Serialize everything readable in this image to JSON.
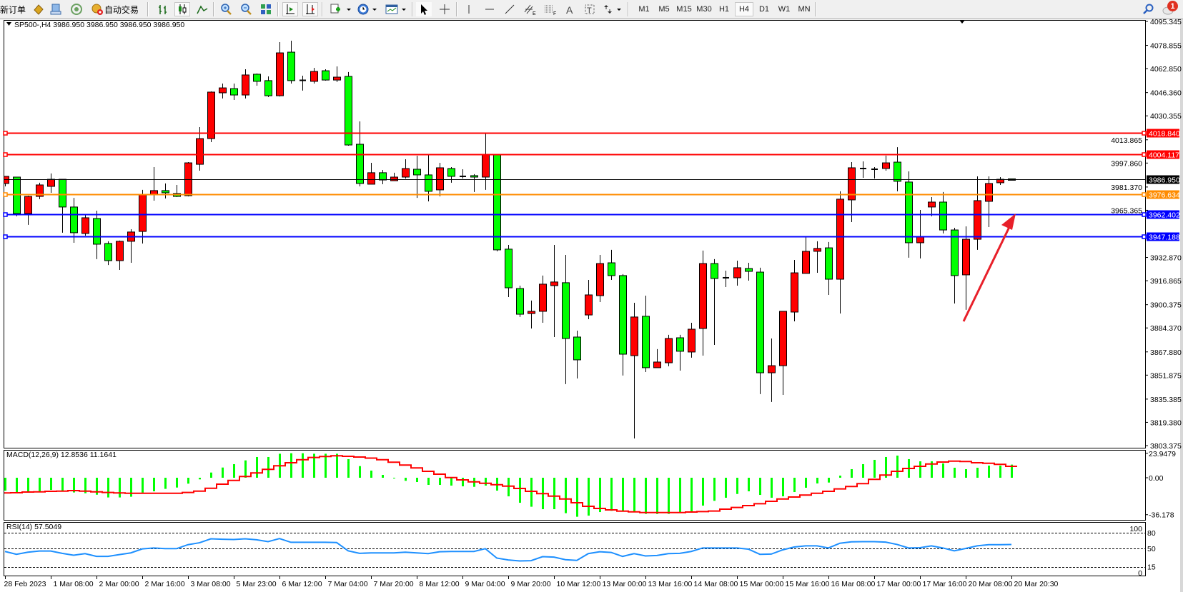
{
  "toolbar": {
    "new_order": "新订单",
    "auto_trading": "自动交易",
    "periods": [
      "M1",
      "M5",
      "M15",
      "M30",
      "H1",
      "H4",
      "D1",
      "W1",
      "MN"
    ],
    "active_period": "H4",
    "notification_count": "1",
    "icons": [
      "market-watch-icon",
      "navigator-icon",
      "signals-icon",
      "auto-trading-icon",
      "bar-chart-icon",
      "candlestick-chart-icon",
      "line-chart-icon",
      "zoom-in-icon",
      "zoom-out-icon",
      "tile-windows-icon",
      "chart-shift-icon",
      "auto-scroll-icon",
      "indicators-icon",
      "periods-icon",
      "templates-icon",
      "cursor-icon",
      "crosshair-icon",
      "vertical-line-icon",
      "horizontal-line-icon",
      "trendline-icon",
      "equidistant-channel-icon",
      "fibonacci-icon",
      "text-icon",
      "text-label-icon",
      "arrows-icon",
      "search-icon",
      "chat-icon"
    ]
  },
  "chart": {
    "header": "SP500-,H4  3986.950 3986.950 3986.950 3986.950"
  },
  "chart_data": {
    "type": "candlestick",
    "symbol": "SP500-",
    "timeframe": "H4",
    "grid": false,
    "bull_color": "#ff0000",
    "bear_color": "#00ff00",
    "price_range": [
      3803.375,
      4095.345
    ],
    "price_ticks": [
      "4095.345",
      "4078.855",
      "4062.850",
      "4046.360",
      "4030.355",
      "4013.865",
      "3997.860",
      "3981.370",
      "3965.365",
      "3932.870",
      "3916.865",
      "3900.375",
      "3884.370",
      "3867.880",
      "3851.875",
      "3835.385",
      "3819.380",
      "3803.375"
    ],
    "levels": [
      {
        "price": 4018.84,
        "label": "4018.840",
        "color": "#ff0000"
      },
      {
        "price": 4004.117,
        "label": "4004.117",
        "color": "#ff0000"
      },
      {
        "price": 3976.634,
        "label": "3976.634",
        "color": "#ff8c00"
      },
      {
        "price": 3962.402,
        "label": "3962.402",
        "color": "#0000ff"
      },
      {
        "price": 3947.188,
        "label": "3947.188",
        "color": "#0000ff"
      }
    ],
    "bid": {
      "price": 3986.95,
      "label": "3986.950",
      "color": "#000000"
    },
    "candles_ohlc": [
      [
        3983.8,
        3988.7,
        3981.8,
        3988.7
      ],
      [
        3988.2,
        3988.2,
        3961.2,
        3963.1
      ],
      [
        3963.1,
        3975.4,
        3955.3,
        3974.9
      ],
      [
        3974.9,
        3984.3,
        3973.0,
        3982.8
      ],
      [
        3981.8,
        3990.7,
        3977.4,
        3986.7
      ],
      [
        3986.7,
        3986.7,
        3949.9,
        3967.6
      ],
      [
        3967.6,
        3973.9,
        3943.0,
        3949.9
      ],
      [
        3949.4,
        3962.2,
        3947.9,
        3960.2
      ],
      [
        3959.7,
        3965.1,
        3931.7,
        3942.0
      ],
      [
        3942.5,
        3944.0,
        3927.7,
        3930.7
      ],
      [
        3930.7,
        3944.5,
        3924.3,
        3944.0
      ],
      [
        3944.0,
        3952.3,
        3929.2,
        3950.4
      ],
      [
        3950.8,
        3979.4,
        3942.5,
        3975.9
      ],
      [
        3976.4,
        3995.1,
        3972.0,
        3978.9
      ],
      [
        3978.9,
        3983.8,
        3973.5,
        3977.4
      ],
      [
        3976.9,
        3982.8,
        3974.4,
        3974.9
      ],
      [
        3975.4,
        3998.5,
        3974.9,
        3998.0
      ],
      [
        3997.0,
        4022.6,
        3992.6,
        4014.7
      ],
      [
        4014.7,
        4047.2,
        4012.3,
        4046.7
      ],
      [
        4046.2,
        4052.6,
        4042.3,
        4049.6
      ],
      [
        4049.1,
        4052.6,
        4041.3,
        4044.7
      ],
      [
        4044.7,
        4062.4,
        4042.3,
        4058.5
      ],
      [
        4059.0,
        4059.5,
        4051.1,
        4054.1
      ],
      [
        4054.6,
        4057.5,
        4043.3,
        4044.2
      ],
      [
        4044.2,
        4081.1,
        4043.7,
        4073.7
      ],
      [
        4074.2,
        4082.1,
        4052.6,
        4054.6
      ],
      [
        4054.8,
        4058.0,
        4047.7,
        4054.8
      ],
      [
        4054.1,
        4063.4,
        4052.6,
        4060.9
      ],
      [
        4061.4,
        4062.4,
        4054.6,
        4055.0
      ],
      [
        4055.0,
        4064.4,
        4053.6,
        4057.0
      ],
      [
        4057.5,
        4060.5,
        4009.8,
        4010.3
      ],
      [
        4010.8,
        4026.5,
        3981.8,
        3983.8
      ],
      [
        3983.3,
        3998.0,
        3983.3,
        3991.2
      ],
      [
        3991.2,
        3993.1,
        3983.3,
        3986.2
      ],
      [
        3985.7,
        3991.2,
        3985.7,
        3988.2
      ],
      [
        3988.2,
        4000.5,
        3987.2,
        3994.1
      ],
      [
        3993.6,
        4002.9,
        3973.9,
        3989.7
      ],
      [
        3989.7,
        4003.4,
        3971.5,
        3978.4
      ],
      [
        3979.4,
        3998.0,
        3974.9,
        3994.6
      ],
      [
        3994.1,
        3995.1,
        3984.3,
        3988.7
      ],
      [
        3988.7,
        3993.6,
        3987.2,
        3988.7
      ],
      [
        3989.2,
        3990.2,
        3977.9,
        3988.2
      ],
      [
        3988.2,
        4018.7,
        3979.4,
        4003.9
      ],
      [
        4003.9,
        4003.9,
        3937.1,
        3938.1
      ],
      [
        3938.6,
        3941.5,
        3905.6,
        3912.0
      ],
      [
        3911.5,
        3913.5,
        3891.9,
        3893.8
      ],
      [
        3894.3,
        3903.2,
        3884.0,
        3895.8
      ],
      [
        3895.8,
        3920.4,
        3887.9,
        3914.5
      ],
      [
        3913.5,
        3941.5,
        3878.1,
        3916.0
      ],
      [
        3915.5,
        3934.6,
        3845.7,
        3877.1
      ],
      [
        3878.1,
        3882.5,
        3849.6,
        3862.4
      ],
      [
        3893.3,
        3917.4,
        3890.4,
        3907.1
      ],
      [
        3906.6,
        3934.6,
        3902.2,
        3928.7
      ],
      [
        3929.2,
        3938.1,
        3917.4,
        3920.4
      ],
      [
        3920.4,
        3921.4,
        3851.6,
        3866.3
      ],
      [
        3865.3,
        3901.7,
        3808.3,
        3891.9
      ],
      [
        3892.4,
        3906.6,
        3854.0,
        3857.0
      ],
      [
        3857.0,
        3869.8,
        3857.0,
        3860.9
      ],
      [
        3860.4,
        3879.6,
        3858.0,
        3877.1
      ],
      [
        3877.6,
        3879.6,
        3855.0,
        3868.3
      ],
      [
        3867.8,
        3887.9,
        3863.9,
        3883.5
      ],
      [
        3884.0,
        3937.6,
        3865.3,
        3928.7
      ],
      [
        3928.7,
        3931.7,
        3872.7,
        3918.4
      ],
      [
        3918.9,
        3923.8,
        3912.5,
        3918.9
      ],
      [
        3918.9,
        3930.7,
        3913.5,
        3925.8
      ],
      [
        3925.3,
        3929.2,
        3916.9,
        3923.3
      ],
      [
        3922.8,
        3925.8,
        3838.8,
        3853.5
      ],
      [
        3853.5,
        3877.1,
        3833.4,
        3858.4
      ],
      [
        3858.4,
        3895.8,
        3838.3,
        3895.8
      ],
      [
        3895.3,
        3931.2,
        3888.9,
        3922.3
      ],
      [
        3921.9,
        3946.9,
        3921.9,
        3937.1
      ],
      [
        3937.1,
        3944.0,
        3922.3,
        3939.1
      ],
      [
        3939.5,
        3943.5,
        3907.1,
        3917.9
      ],
      [
        3917.9,
        3978.4,
        3894.3,
        3973.0
      ],
      [
        3972.5,
        3998.5,
        3957.2,
        3994.6
      ],
      [
        3994.1,
        3999.0,
        3987.7,
        3994.1
      ],
      [
        3993.6,
        3995.1,
        3987.2,
        3993.6
      ],
      [
        3994.1,
        4003.0,
        3992.6,
        3998.0
      ],
      [
        3998.5,
        4008.8,
        3978.4,
        3985.3
      ],
      [
        3984.8,
        3992.1,
        3932.7,
        3943.0
      ],
      [
        3943.0,
        3965.6,
        3932.2,
        3947.4
      ],
      [
        3967.6,
        3974.4,
        3961.2,
        3971.0
      ],
      [
        3971.0,
        3977.9,
        3949.4,
        3951.8
      ],
      [
        3951.8,
        3953.3,
        3901.2,
        3920.4
      ],
      [
        3920.9,
        3954.3,
        3896.8,
        3945.4
      ],
      [
        3945.4,
        3988.7,
        3938.1,
        3972.0
      ],
      [
        3971.5,
        3988.7,
        3953.8,
        3983.8
      ],
      [
        3984.3,
        3988.2,
        3982.8,
        3986.7
      ],
      [
        3987.0,
        3987.0,
        3986.95,
        3986.95
      ]
    ],
    "time_labels": [
      "28 Feb 2023",
      "1 Mar 08:00",
      "2 Mar 00:00",
      "2 Mar 16:00",
      "3 Mar 08:00",
      "5 Mar 23:00",
      "6 Mar 12:00",
      "7 Mar 04:00",
      "7 Mar 20:00",
      "8 Mar 12:00",
      "9 Mar 04:00",
      "9 Mar 20:00",
      "10 Mar 12:00",
      "13 Mar 00:00",
      "13 Mar 16:00",
      "14 Mar 08:00",
      "15 Mar 00:00",
      "15 Mar 16:00",
      "16 Mar 08:00",
      "17 Mar 00:00",
      "17 Mar 16:00",
      "20 Mar 08:00",
      "20 Mar 20:30"
    ],
    "macd": {
      "title": "MACD(12,26,9) 12.8536 11.1641",
      "axis_labels": [
        {
          "value": 23.9479,
          "label": "23.9479"
        },
        {
          "value": 0,
          "label": "0.00"
        },
        {
          "value": -36.178,
          "label": "-36.178"
        }
      ],
      "histogram_color": "#00ff00",
      "signal_color": "#ff0000",
      "main": [
        -12.6,
        -14.4,
        -14.4,
        -13.3,
        -11.9,
        -12.6,
        -14.4,
        -15.2,
        -16.6,
        -19.3,
        -19.3,
        -18.6,
        -14.6,
        -13.3,
        -10.9,
        -9.6,
        -5.8,
        -1.6,
        5.1,
        10.0,
        13.3,
        17.0,
        20.3,
        20.3,
        23.5,
        24.0,
        24.0,
        23.5,
        23.5,
        23.5,
        18.2,
        11.4,
        7.0,
        2.8,
        -0.5,
        -3.0,
        -4.2,
        -7.0,
        -7.0,
        -7.7,
        -8.4,
        -8.9,
        -7.7,
        -12.6,
        -18.2,
        -24.5,
        -28.4,
        -30.8,
        -30.8,
        -34.7,
        -38.2,
        -37.1,
        -33.6,
        -32.4,
        -32.4,
        -33.6,
        -35.4,
        -35.5,
        -35.4,
        -34.3,
        -33.1,
        -27.3,
        -22.6,
        -19.6,
        -15.9,
        -13.3,
        -16.8,
        -19.6,
        -18.2,
        -14.0,
        -9.8,
        -5.6,
        -4.7,
        2.1,
        8.4,
        13.3,
        17.5,
        20.3,
        21.7,
        18.2,
        16.1,
        16.1,
        14.0,
        9.8,
        8.4,
        9.8,
        11.9,
        11.9,
        12.85
      ],
      "signal": [
        -14.9,
        -14.7,
        -14.0,
        -13.8,
        -13.3,
        -13.1,
        -12.6,
        -13.1,
        -13.8,
        -14.4,
        -14.9,
        -15.2,
        -15.2,
        -15.2,
        -15.2,
        -15.2,
        -14.4,
        -13.1,
        -10.3,
        -6.3,
        -2.6,
        1.2,
        4.7,
        8.2,
        11.7,
        14.7,
        17.7,
        19.8,
        20.8,
        21.5,
        21.0,
        20.3,
        19.2,
        17.7,
        15.2,
        12.4,
        9.6,
        6.3,
        3.5,
        0.2,
        -2.1,
        -4.0,
        -5.4,
        -6.8,
        -8.2,
        -10.5,
        -13.3,
        -15.6,
        -18.0,
        -20.8,
        -24.5,
        -28.0,
        -30.1,
        -31.5,
        -32.7,
        -33.4,
        -34.1,
        -34.1,
        -34.1,
        -34.1,
        -33.6,
        -33.1,
        -32.6,
        -30.8,
        -29.1,
        -27.3,
        -25.4,
        -23.1,
        -20.8,
        -18.9,
        -17.0,
        -15.2,
        -13.3,
        -10.9,
        -8.6,
        -5.8,
        -1.6,
        2.6,
        6.3,
        9.1,
        11.2,
        13.5,
        15.4,
        16.3,
        15.9,
        14.7,
        14.2,
        13.1,
        11.16
      ]
    },
    "rsi": {
      "title": "RSI(14) 57.5049",
      "color": "#1e90ff",
      "levels": [
        80,
        50,
        15
      ],
      "axis_labels": [
        {
          "value": 100,
          "label": "100"
        },
        {
          "value": 80,
          "label": "80"
        },
        {
          "value": 50,
          "label": "50"
        },
        {
          "value": 15,
          "label": "15"
        },
        {
          "value": 0,
          "label": "0"
        }
      ],
      "values": [
        44.2,
        38.8,
        42.8,
        45.1,
        45.1,
        40.6,
        37.0,
        40.1,
        34.8,
        34.8,
        38.3,
        41.5,
        49.1,
        50.9,
        49.6,
        49.6,
        57.2,
        60.8,
        68.4,
        67.5,
        67.0,
        68.4,
        66.6,
        63.0,
        68.8,
        61.7,
        61.7,
        61.7,
        61.7,
        61.2,
        45.5,
        40.6,
        41.5,
        41.5,
        41.5,
        42.8,
        41.5,
        40.1,
        43.7,
        44.2,
        44.2,
        44.2,
        49.6,
        31.6,
        28.0,
        26.2,
        26.7,
        34.3,
        33.4,
        28.5,
        27.1,
        40.1,
        43.7,
        42.4,
        34.8,
        40.1,
        35.7,
        36.5,
        40.1,
        40.6,
        44.2,
        50.9,
        50.9,
        50.9,
        50.9,
        48.7,
        38.8,
        39.2,
        47.3,
        52.7,
        54.9,
        54.9,
        50.9,
        59.9,
        62.6,
        63.0,
        63.0,
        62.1,
        57.6,
        50.9,
        51.3,
        54.9,
        50.9,
        45.5,
        50.0,
        54.9,
        57.2,
        57.2,
        57.5
      ]
    },
    "annotation_arrow_color": "#e8202a"
  }
}
